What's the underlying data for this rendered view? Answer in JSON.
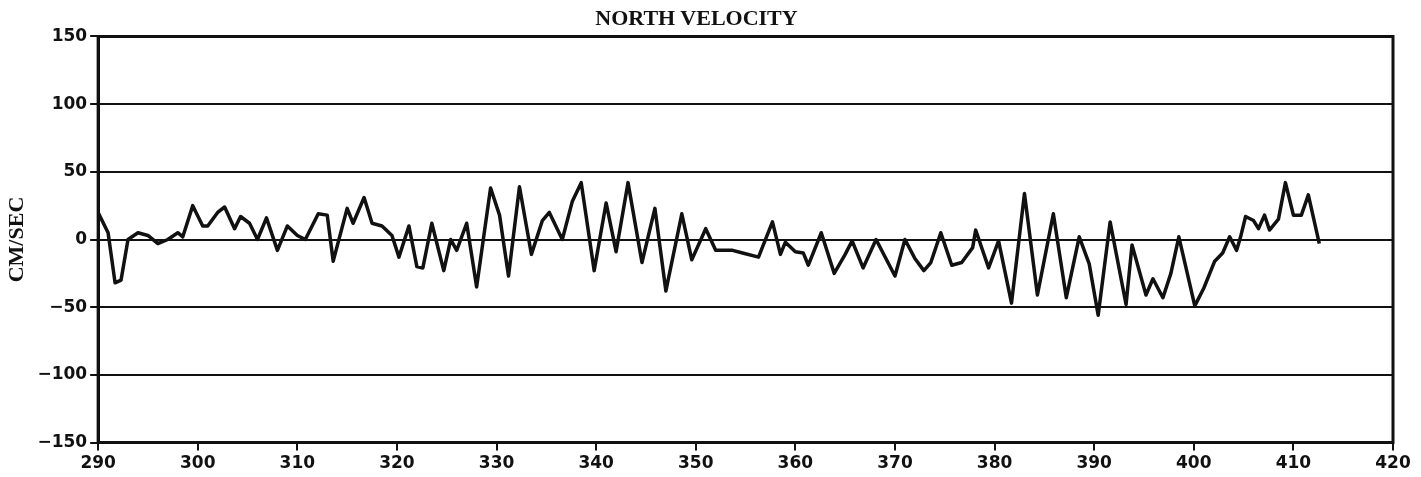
{
  "chart_data": {
    "type": "line",
    "title": "NORTH VELOCITY",
    "ylabel": "CM/SEC",
    "xlim": [
      290,
      420
    ],
    "xticks": [
      290,
      300,
      310,
      320,
      330,
      340,
      350,
      360,
      370,
      380,
      390,
      400,
      410,
      420
    ],
    "ylim": [
      -150,
      150
    ],
    "yticks": [
      -150,
      -100,
      -50,
      0,
      50,
      100,
      150
    ],
    "grid": "y",
    "legend": false,
    "marker": "none",
    "line_style": "solid",
    "series": [
      {
        "color": "#111111",
        "x": [
          290,
          291,
          291.7,
          292.3,
          293,
          294,
          295,
          296,
          297,
          298,
          298.5,
          299.5,
          300.5,
          301,
          302,
          302.7,
          303.7,
          304.3,
          305.2,
          306,
          306.9,
          308,
          309,
          310,
          310.8,
          312.1,
          313,
          313.6,
          315,
          315.6,
          316.7,
          317.5,
          318.5,
          319.5,
          320.2,
          321.2,
          322,
          322.6,
          323.5,
          324.7,
          325.4,
          326,
          327,
          328,
          329.4,
          330.3,
          331.2,
          332.3,
          333.5,
          334.6,
          335.3,
          336.6,
          337.6,
          338.5,
          339.8,
          341,
          342,
          343.2,
          344.6,
          345.9,
          347,
          348.6,
          349.6,
          351,
          352,
          353.7,
          354.7,
          356.3,
          357.7,
          358.5,
          359,
          360,
          360.8,
          361.3,
          362.6,
          363.9,
          365,
          365.7,
          366.8,
          368.1,
          370,
          371,
          372,
          372.9,
          373.6,
          374.6,
          375.7,
          376.7,
          377.8,
          378.1,
          379.4,
          380.4,
          381.7,
          383,
          384.3,
          385.9,
          387.2,
          388.5,
          389.5,
          390.4,
          391.6,
          393.2,
          393.8,
          395.2,
          395.9,
          396.9,
          397.7,
          398.5,
          400.1,
          401,
          402.1,
          402.9,
          403.6,
          404.3,
          404.7,
          405.2,
          406,
          406.5,
          407.1,
          407.6,
          408.5,
          409.2,
          410,
          410.8,
          411.5,
          412.6
        ],
        "values": [
          20,
          5,
          -32,
          -30,
          0,
          5,
          3,
          -3,
          0,
          5,
          2,
          25,
          10,
          10,
          20,
          24,
          8,
          17,
          12,
          0,
          16,
          -8,
          10,
          3,
          0,
          19,
          18,
          -16,
          23,
          12,
          31,
          12,
          10,
          3,
          -13,
          10,
          -20,
          -21,
          12,
          -23,
          0,
          -8,
          12,
          -35,
          38,
          18,
          -27,
          39,
          -11,
          14,
          20,
          0,
          28,
          42,
          -23,
          27,
          -9,
          42,
          -17,
          23,
          -38,
          19,
          -15,
          8,
          -8,
          -8,
          -10,
          -13,
          13,
          -11,
          -2,
          -9,
          -10,
          -19,
          5,
          -25,
          -11,
          -1,
          -21,
          0,
          -27,
          0,
          -14,
          -23,
          -17,
          5,
          -19,
          -17,
          -6,
          7,
          -21,
          -1,
          -47,
          34,
          -41,
          19,
          -43,
          2,
          -18,
          -56,
          13,
          -48,
          -4,
          -41,
          -29,
          -43,
          -25,
          2,
          -49,
          -36,
          -16,
          -10,
          2,
          -8,
          2,
          17,
          14,
          8,
          18,
          7,
          15,
          42,
          18,
          18,
          33,
          -3
        ]
      }
    ]
  }
}
